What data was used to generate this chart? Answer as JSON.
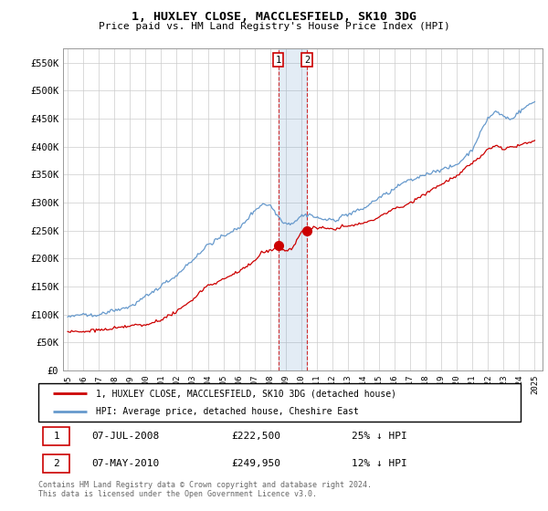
{
  "title": "1, HUXLEY CLOSE, MACCLESFIELD, SK10 3DG",
  "subtitle": "Price paid vs. HM Land Registry's House Price Index (HPI)",
  "ylabel_ticks": [
    "£0",
    "£50K",
    "£100K",
    "£150K",
    "£200K",
    "£250K",
    "£300K",
    "£350K",
    "£400K",
    "£450K",
    "£500K",
    "£550K"
  ],
  "ytick_values": [
    0,
    50000,
    100000,
    150000,
    200000,
    250000,
    300000,
    350000,
    400000,
    450000,
    500000,
    550000
  ],
  "ylim": [
    0,
    575000
  ],
  "xlim_start": 1994.7,
  "xlim_end": 2025.5,
  "legend_line1": "1, HUXLEY CLOSE, MACCLESFIELD, SK10 3DG (detached house)",
  "legend_line2": "HPI: Average price, detached house, Cheshire East",
  "transaction1_label": "1",
  "transaction1_date": "07-JUL-2008",
  "transaction1_price": "£222,500",
  "transaction1_note": "25% ↓ HPI",
  "transaction1_x": 2008.52,
  "transaction1_y": 222500,
  "transaction2_label": "2",
  "transaction2_date": "07-MAY-2010",
  "transaction2_price": "£249,950",
  "transaction2_note": "12% ↓ HPI",
  "transaction2_x": 2010.36,
  "transaction2_y": 249950,
  "footer": "Contains HM Land Registry data © Crown copyright and database right 2024.\nThis data is licensed under the Open Government Licence v3.0.",
  "red_color": "#cc0000",
  "blue_color": "#6699cc",
  "bg_color": "#ffffff",
  "plot_bg": "#ffffff",
  "grid_color": "#cccccc"
}
